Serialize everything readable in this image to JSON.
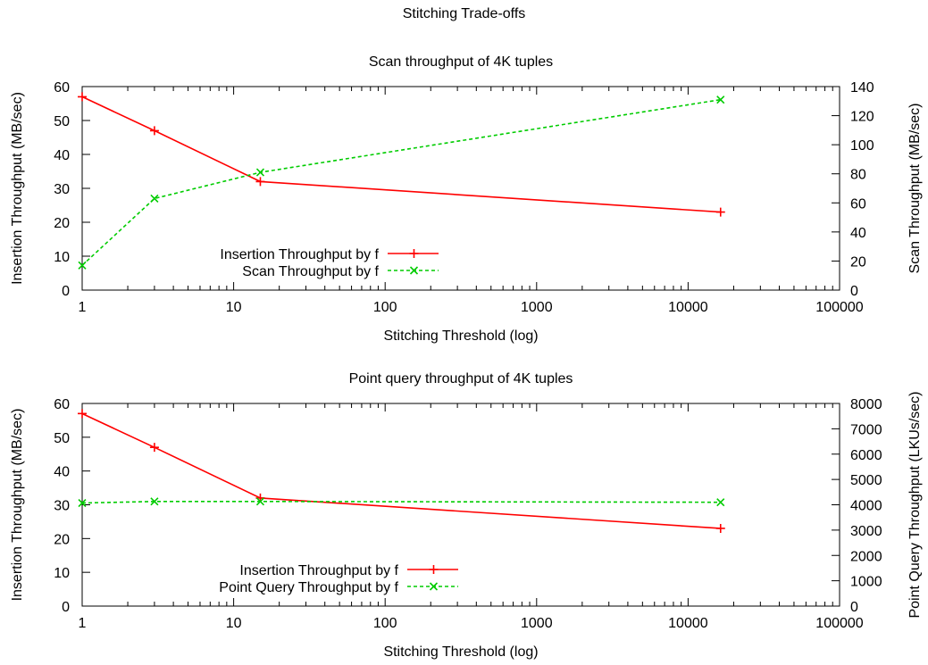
{
  "figure_title": "Stitching Trade-offs",
  "colors": {
    "series1": "#ff0000",
    "series2": "#00cc00",
    "axis": "#000000"
  },
  "chart_data": [
    {
      "type": "line",
      "title": "Scan throughput of 4K tuples",
      "xlabel": "Stitching Threshold (log)",
      "ylabel_left": "Insertion Throughput (MB/sec)",
      "ylabel_right": "Scan Throughput (MB/sec)",
      "x_scale": "log",
      "xlim": [
        1,
        100000
      ],
      "xticks": [
        1,
        10,
        100,
        1000,
        10000,
        100000
      ],
      "xtick_labels": [
        "1",
        "10",
        "100",
        "1000",
        "10000",
        "100000"
      ],
      "ylim_left": [
        0,
        60
      ],
      "yticks_left": [
        0,
        10,
        20,
        30,
        40,
        50,
        60
      ],
      "ylim_right": [
        0,
        140
      ],
      "yticks_right": [
        0,
        20,
        40,
        60,
        80,
        100,
        120,
        140
      ],
      "grid": false,
      "legend_position": "bottom-left",
      "series": [
        {
          "name": "Insertion Throughput by f",
          "axis": "left",
          "color": "#ff0000",
          "dash": "solid",
          "marker": "plus",
          "x": [
            1,
            3,
            15,
            16384
          ],
          "y": [
            57,
            47,
            32,
            23
          ]
        },
        {
          "name": "Scan Throughput by f",
          "axis": "right",
          "color": "#00cc00",
          "dash": "dashed",
          "marker": "x",
          "x": [
            1,
            3,
            15,
            16384
          ],
          "y": [
            17,
            63,
            81,
            131
          ]
        }
      ]
    },
    {
      "type": "line",
      "title": "Point query throughput of 4K tuples",
      "xlabel": "Stitching Threshold (log)",
      "ylabel_left": "Insertion Throughput (MB/sec)",
      "ylabel_right": "Point Query Throughput (LKUs/sec)",
      "x_scale": "log",
      "xlim": [
        1,
        100000
      ],
      "xticks": [
        1,
        10,
        100,
        1000,
        10000,
        100000
      ],
      "xtick_labels": [
        "1",
        "10",
        "100",
        "1000",
        "10000",
        "100000"
      ],
      "ylim_left": [
        0,
        60
      ],
      "yticks_left": [
        0,
        10,
        20,
        30,
        40,
        50,
        60
      ],
      "ylim_right": [
        0,
        8000
      ],
      "yticks_right": [
        0,
        1000,
        2000,
        3000,
        4000,
        5000,
        6000,
        7000,
        8000
      ],
      "grid": false,
      "legend_position": "bottom-left",
      "series": [
        {
          "name": "Insertion Throughput by f",
          "axis": "left",
          "color": "#ff0000",
          "dash": "solid",
          "marker": "plus",
          "x": [
            1,
            3,
            15,
            16384
          ],
          "y": [
            57,
            47,
            32,
            23
          ]
        },
        {
          "name": "Point Query Throughput by f",
          "axis": "right",
          "color": "#00cc00",
          "dash": "dashed",
          "marker": "x",
          "x": [
            1,
            3,
            15,
            16384
          ],
          "y": [
            4070,
            4130,
            4130,
            4100
          ]
        }
      ]
    }
  ]
}
